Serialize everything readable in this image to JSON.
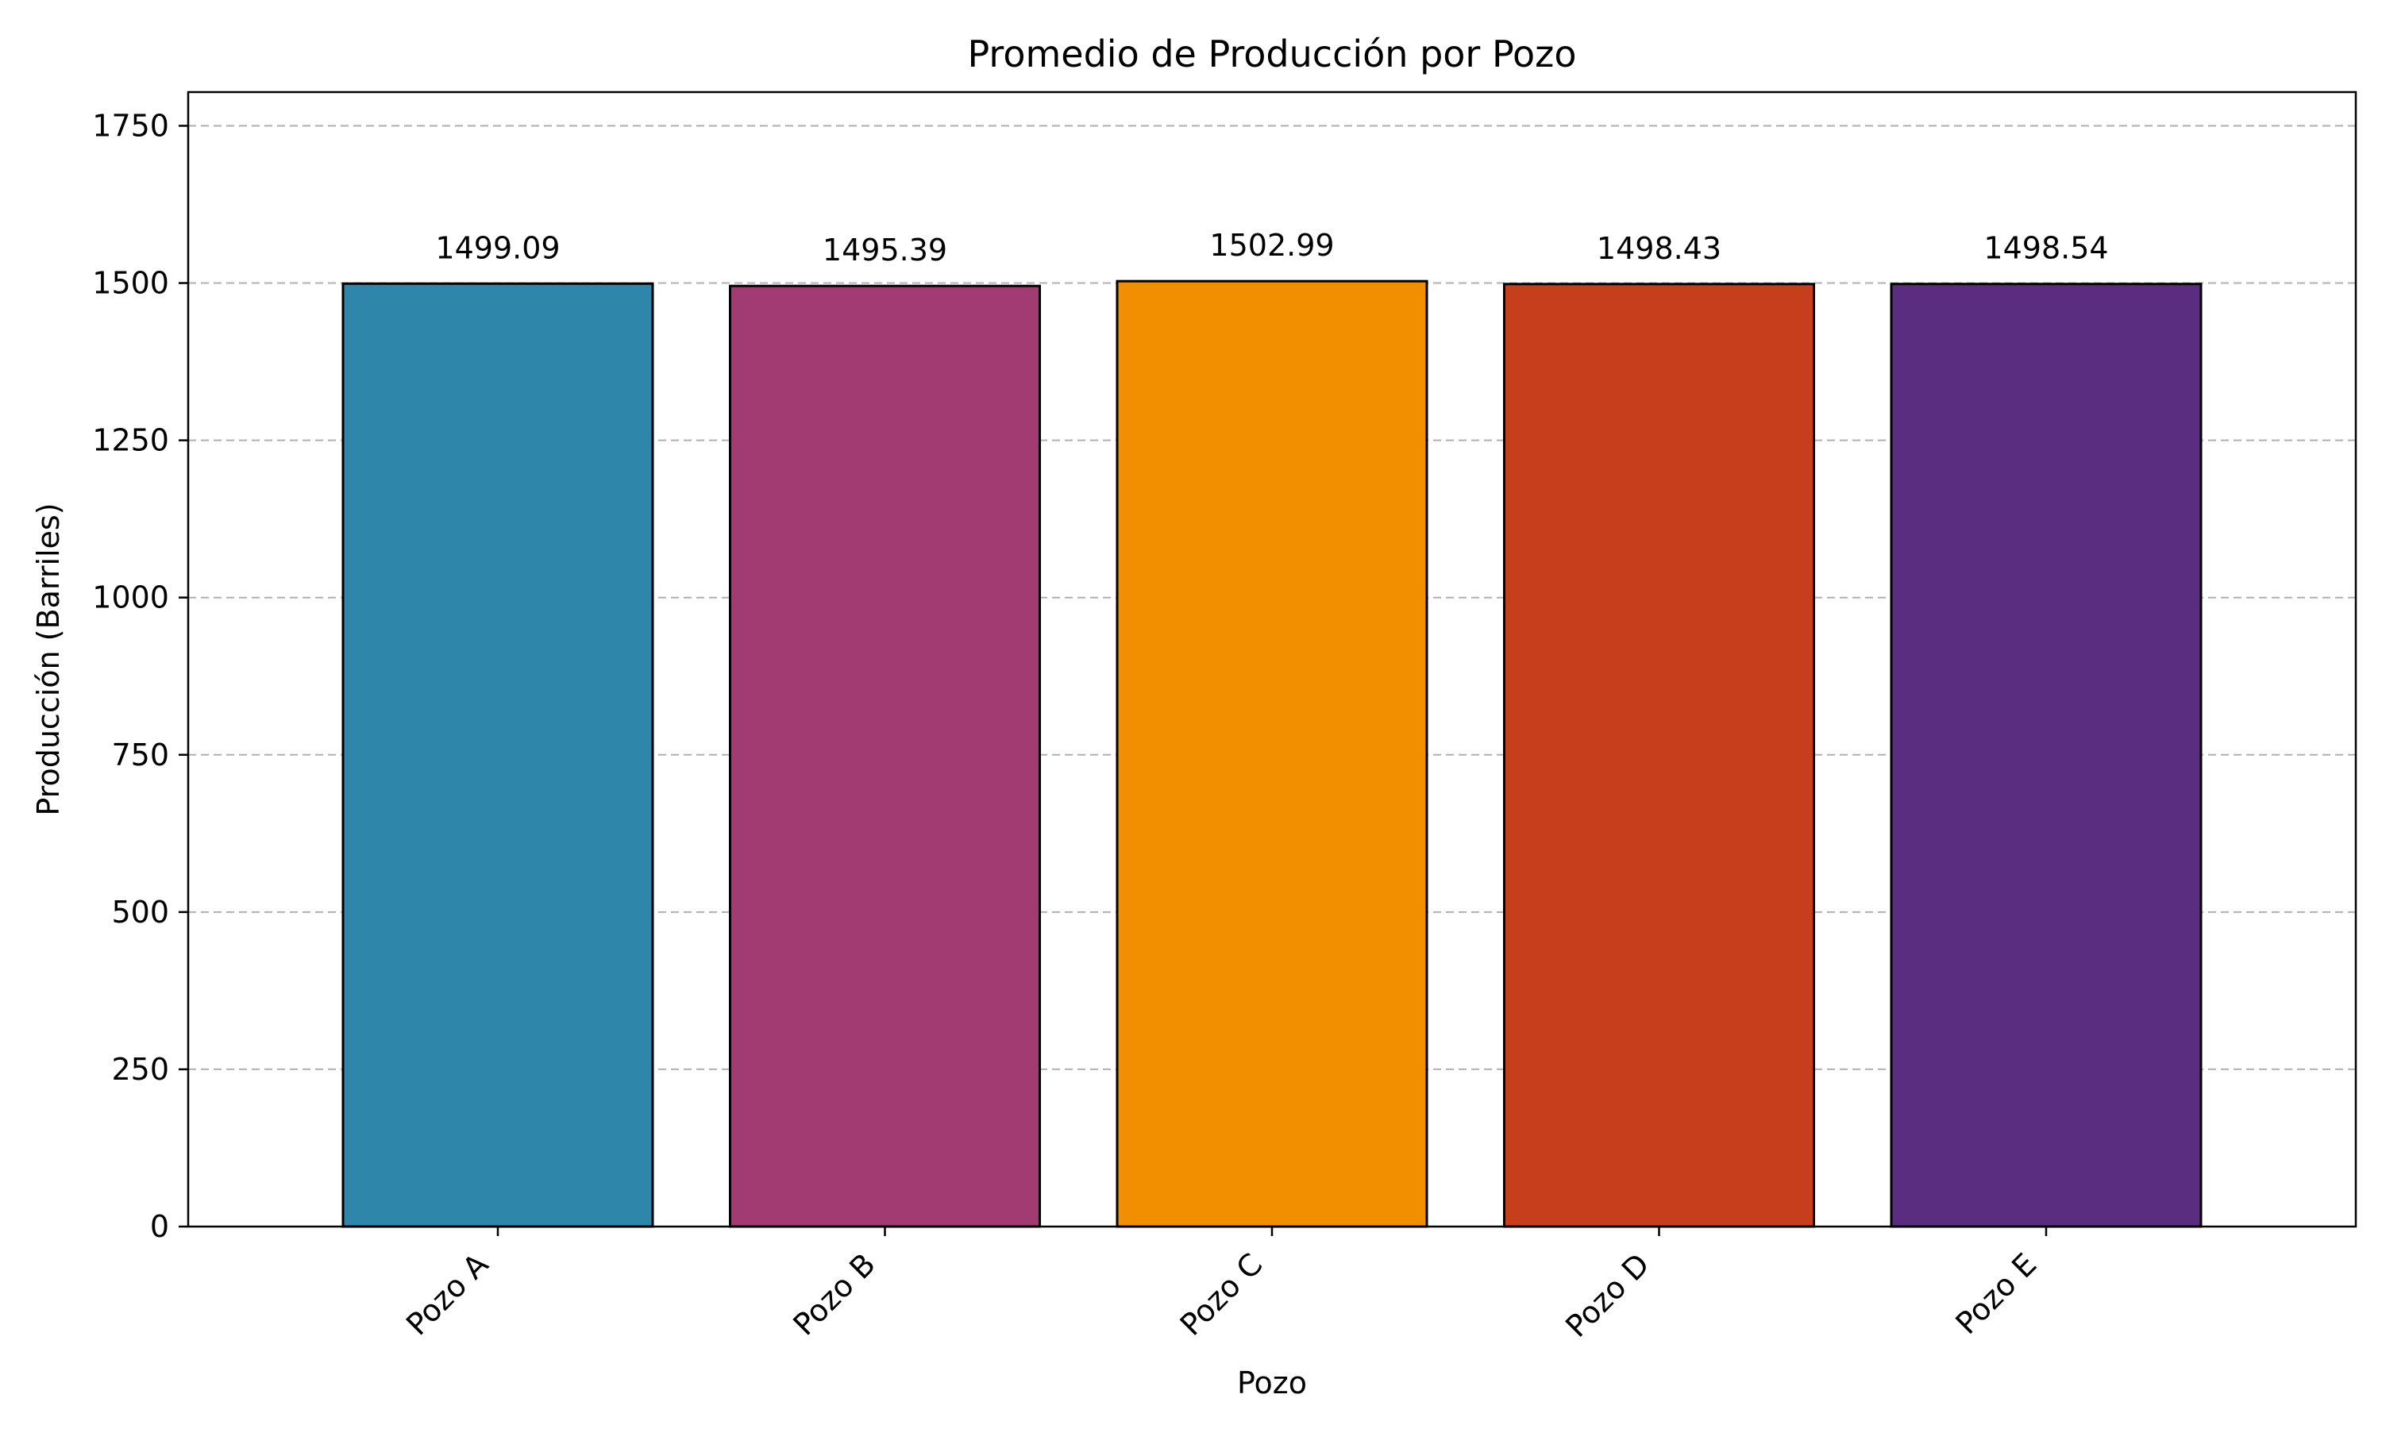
{
  "chart_data": {
    "type": "bar",
    "title": "Promedio de Producción por Pozo",
    "xlabel": "Pozo",
    "ylabel": "Producción (Barriles)",
    "categories": [
      "Pozo A",
      "Pozo B",
      "Pozo C",
      "Pozo D",
      "Pozo E"
    ],
    "values": [
      1499.09,
      1495.39,
      1502.99,
      1498.43,
      1498.54
    ],
    "value_labels": [
      "1499.09",
      "1495.39",
      "1502.99",
      "1498.43",
      "1498.54"
    ],
    "colors": [
      "#2e86ab",
      "#a23b72",
      "#f18f01",
      "#c73e1d",
      "#5a2d81"
    ],
    "ylim": [
      0,
      1803.59
    ],
    "yticks": [
      0,
      250,
      500,
      750,
      1000,
      1250,
      1500,
      1750
    ],
    "ytick_labels": [
      "0",
      "250",
      "500",
      "750",
      "1000",
      "1250",
      "1500",
      "1750"
    ],
    "grid": "y-dashed",
    "legend": "none"
  }
}
